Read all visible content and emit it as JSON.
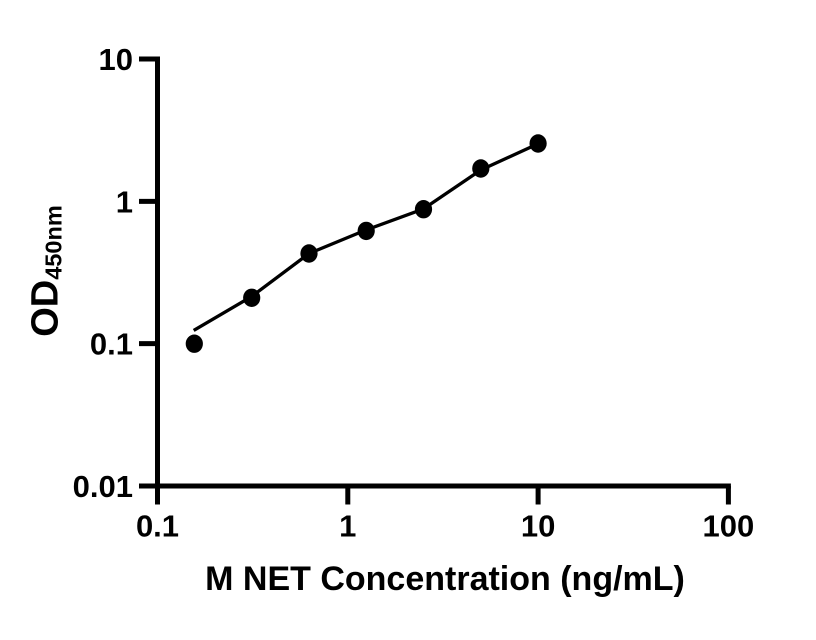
{
  "chart_data": {
    "type": "scatter",
    "xlabel": "M NET Concentration (ng/mL)",
    "ylabel": "OD",
    "ylabel_subscript": "450nm",
    "x_scale": "log",
    "y_scale": "log",
    "xlim": [
      0.1,
      100
    ],
    "ylim": [
      0.01,
      10
    ],
    "x_ticks": [
      0.1,
      1,
      10,
      100
    ],
    "x_tick_labels": [
      "0.1",
      "1",
      "10",
      "100"
    ],
    "y_ticks": [
      0.01,
      0.1,
      1,
      10
    ],
    "y_tick_labels": [
      "0.01",
      "0.1",
      "1",
      "10"
    ],
    "grid": false,
    "legend": null,
    "marker_color": "#000000",
    "line_color": "#000000",
    "axis_color": "#000000",
    "background_color": "#ffffff",
    "points": [
      {
        "x": 0.156,
        "y": 0.1
      },
      {
        "x": 0.3125,
        "y": 0.21
      },
      {
        "x": 0.625,
        "y": 0.43
      },
      {
        "x": 1.25,
        "y": 0.62
      },
      {
        "x": 2.5,
        "y": 0.88
      },
      {
        "x": 5,
        "y": 1.7
      },
      {
        "x": 10,
        "y": 2.55
      }
    ],
    "trendline": [
      {
        "x": 0.155,
        "y": 0.124
      },
      {
        "x": 0.3125,
        "y": 0.215
      },
      {
        "x": 0.625,
        "y": 0.43
      },
      {
        "x": 1.25,
        "y": 0.63
      },
      {
        "x": 2.5,
        "y": 0.885
      },
      {
        "x": 5,
        "y": 1.66
      },
      {
        "x": 10,
        "y": 2.54
      }
    ]
  }
}
